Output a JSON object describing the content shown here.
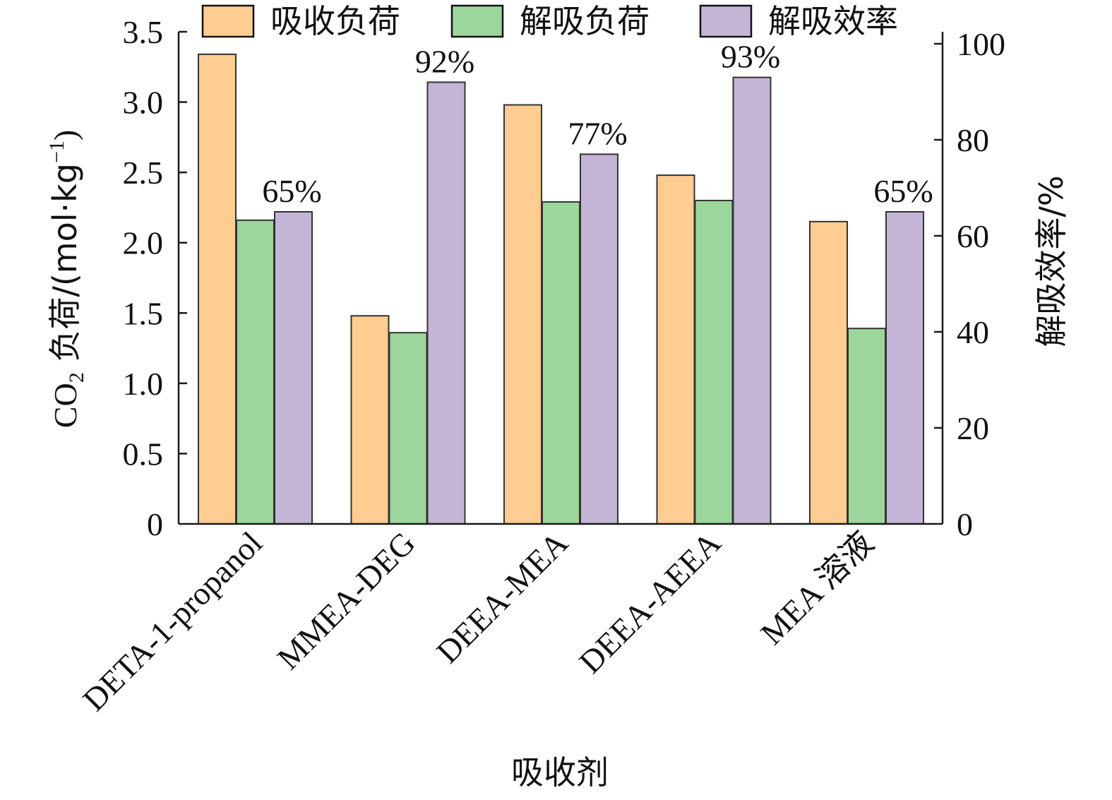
{
  "chart_data": {
    "type": "bar",
    "categories": [
      "DETA-1-propanol",
      "MMEA-DEG",
      "DEEA-MEA",
      "DEEA-AEEA",
      "MEA 溶液"
    ],
    "series": [
      {
        "name": "吸收负荷",
        "axis": "left",
        "color": "#FFCC91",
        "values": [
          3.34,
          1.48,
          2.98,
          2.48,
          2.15
        ]
      },
      {
        "name": "解吸负荷",
        "axis": "left",
        "color": "#9DD69C",
        "values": [
          2.16,
          1.36,
          2.29,
          2.3,
          1.39
        ]
      },
      {
        "name": "解吸效率",
        "axis": "right",
        "color": "#C4B4D6",
        "values": [
          65,
          92,
          77,
          93,
          65
        ]
      }
    ],
    "data_labels": [
      "65%",
      "92%",
      "77%",
      "93%",
      "65%"
    ],
    "xlabel": "吸收剂",
    "ylabel": "CO2 负荷/(mol·kg⁻¹)",
    "ylabel_parts": {
      "pre": "CO",
      "sub": "2",
      "mid": " 负荷/(mol·kg",
      "sup": "−1",
      "post": ")"
    },
    "y2label": "解吸效率/%",
    "ylim": [
      0,
      3.5
    ],
    "yticks": [
      "0",
      "0.5",
      "1.0",
      "1.5",
      "2.0",
      "2.5",
      "3.0",
      "3.5"
    ],
    "y2lim": [
      0,
      100
    ],
    "y2ticks": [
      "0",
      "20",
      "40",
      "60",
      "80",
      "100"
    ],
    "legend_position": "top",
    "grid": false
  }
}
